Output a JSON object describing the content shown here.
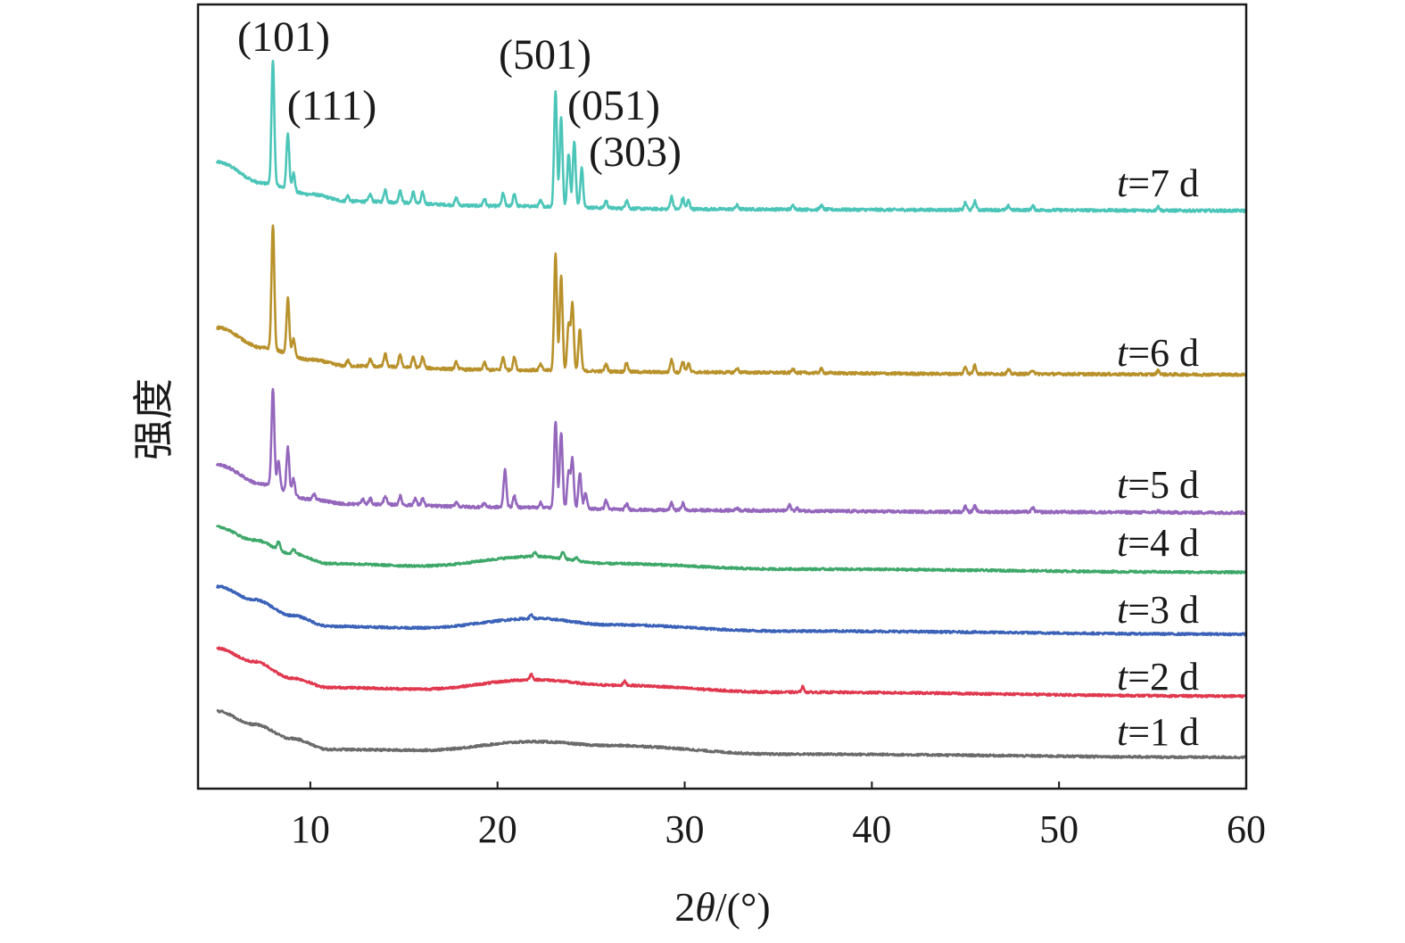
{
  "chart_data": {
    "type": "line",
    "title": "",
    "xlabel": {
      "prefix": "2",
      "var": "θ",
      "suffix": "/(°)"
    },
    "ylabel": "强度",
    "xlim": [
      4,
      60
    ],
    "ylim": [
      0,
      100
    ],
    "xticks": [
      10,
      20,
      30,
      40,
      50,
      60
    ],
    "yticks": [],
    "grid": false,
    "legend": "none (inline labels at right end of each curve)",
    "peak_annotations": [
      {
        "text": "(101)",
        "x": 8.0
      },
      {
        "text": "(111)",
        "x": 8.8
      },
      {
        "text": "(501)",
        "x": 23.1
      },
      {
        "text": "(051)",
        "x": 23.4
      },
      {
        "text": "(303)",
        "x": 24.4
      }
    ],
    "series": [
      {
        "name": "t=7 d",
        "label_var": "t",
        "label_text": "=7 d",
        "color": "#4cc5b9",
        "baseline": [
          [
            5,
            79.9
          ],
          [
            7.5,
            77.2
          ],
          [
            10,
            75.8
          ],
          [
            12,
            74.9
          ],
          [
            20,
            74.3
          ],
          [
            30,
            73.9
          ],
          [
            45,
            73.8
          ],
          [
            60,
            73.7
          ]
        ],
        "peaks": [
          [
            8.0,
            15.7
          ],
          [
            8.8,
            7.1
          ],
          [
            9.1,
            2.3
          ],
          [
            12.0,
            0.7
          ],
          [
            13.2,
            0.9
          ],
          [
            14.0,
            1.6
          ],
          [
            14.8,
            1.6
          ],
          [
            15.5,
            1.4
          ],
          [
            16.0,
            1.4
          ],
          [
            17.8,
            0.9
          ],
          [
            19.3,
            0.9
          ],
          [
            20.3,
            1.6
          ],
          [
            20.9,
            1.6
          ],
          [
            22.3,
            0.7
          ],
          [
            23.1,
            14.8
          ],
          [
            23.4,
            11.4
          ],
          [
            23.8,
            6.8
          ],
          [
            24.1,
            8.5
          ],
          [
            24.5,
            5.1
          ],
          [
            25.8,
            0.9
          ],
          [
            26.9,
            1.1
          ],
          [
            29.3,
            1.6
          ],
          [
            29.9,
            1.4
          ],
          [
            30.2,
            1.1
          ],
          [
            32.8,
            0.5
          ],
          [
            35.8,
            0.5
          ],
          [
            37.3,
            0.5
          ],
          [
            45.0,
            0.9
          ],
          [
            45.5,
            1.1
          ],
          [
            47.3,
            0.5
          ],
          [
            48.6,
            0.5
          ],
          [
            55.3,
            0.5
          ]
        ]
      },
      {
        "name": "t=6 d",
        "label_var": "t",
        "label_text": "=6 d",
        "color": "#b8912a",
        "baseline": [
          [
            5,
            58.8
          ],
          [
            7.5,
            56.2
          ],
          [
            10,
            54.7
          ],
          [
            12,
            53.9
          ],
          [
            20,
            53.4
          ],
          [
            30,
            53.1
          ],
          [
            45,
            52.9
          ],
          [
            60,
            52.8
          ]
        ],
        "peaks": [
          [
            8.0,
            15.9
          ],
          [
            8.8,
            7.1
          ],
          [
            9.1,
            2.3
          ],
          [
            12.0,
            0.7
          ],
          [
            13.2,
            0.9
          ],
          [
            14.0,
            1.6
          ],
          [
            14.8,
            1.6
          ],
          [
            15.5,
            1.4
          ],
          [
            16.0,
            1.4
          ],
          [
            17.8,
            0.9
          ],
          [
            19.3,
            0.9
          ],
          [
            20.3,
            1.6
          ],
          [
            20.9,
            1.6
          ],
          [
            22.3,
            0.7
          ],
          [
            23.1,
            14.8
          ],
          [
            23.4,
            12.2
          ],
          [
            23.8,
            6.0
          ],
          [
            24.0,
            8.5
          ],
          [
            24.4,
            5.3
          ],
          [
            25.8,
            0.9
          ],
          [
            26.9,
            1.1
          ],
          [
            29.3,
            1.6
          ],
          [
            29.9,
            1.4
          ],
          [
            30.2,
            1.1
          ],
          [
            32.8,
            0.5
          ],
          [
            35.8,
            0.5
          ],
          [
            37.3,
            0.5
          ],
          [
            45.0,
            0.9
          ],
          [
            45.5,
            1.1
          ],
          [
            47.3,
            0.5
          ],
          [
            48.6,
            0.5
          ],
          [
            55.3,
            0.5
          ]
        ]
      },
      {
        "name": "t=5 d",
        "label_var": "t",
        "label_text": "=5 d",
        "color": "#9467bd",
        "baseline": [
          [
            5,
            41.3
          ],
          [
            7.5,
            38.8
          ],
          [
            10,
            36.9
          ],
          [
            12,
            36.3
          ],
          [
            20,
            35.9
          ],
          [
            30,
            35.5
          ],
          [
            45,
            35.3
          ],
          [
            60,
            35.2
          ]
        ],
        "peaks": [
          [
            8.0,
            12.5
          ],
          [
            8.3,
            3.4
          ],
          [
            8.8,
            5.7
          ],
          [
            9.1,
            2.0
          ],
          [
            10.2,
            0.7
          ],
          [
            12.8,
            0.6
          ],
          [
            13.2,
            0.7
          ],
          [
            14.0,
            1.1
          ],
          [
            14.8,
            1.1
          ],
          [
            15.6,
            0.9
          ],
          [
            16.0,
            0.9
          ],
          [
            17.8,
            0.6
          ],
          [
            19.3,
            0.5
          ],
          [
            20.4,
            4.8
          ],
          [
            20.9,
            1.4
          ],
          [
            22.3,
            0.6
          ],
          [
            23.1,
            11.1
          ],
          [
            23.4,
            9.7
          ],
          [
            23.8,
            4.6
          ],
          [
            24.0,
            6.3
          ],
          [
            24.4,
            4.6
          ],
          [
            24.7,
            2.0
          ],
          [
            25.8,
            1.1
          ],
          [
            26.9,
            0.7
          ],
          [
            29.3,
            0.9
          ],
          [
            29.9,
            0.9
          ],
          [
            32.8,
            0.3
          ],
          [
            35.6,
            0.7
          ],
          [
            36.0,
            0.3
          ],
          [
            45.0,
            0.7
          ],
          [
            45.5,
            0.7
          ],
          [
            48.6,
            0.5
          ],
          [
            55.3,
            0.2
          ]
        ]
      },
      {
        "name": "t=4 d",
        "label_var": "t",
        "label_text": "=4 d",
        "color": "#3ea86a",
        "baseline": [
          [
            5,
            33.4
          ],
          [
            7,
            31.7
          ],
          [
            9,
            30.0
          ],
          [
            11,
            28.7
          ],
          [
            16,
            28.4
          ],
          [
            22,
            29.6
          ],
          [
            26,
            28.7
          ],
          [
            35,
            28.0
          ],
          [
            60,
            27.6
          ]
        ],
        "peaks": [
          [
            8.3,
            1.1
          ],
          [
            9.1,
            0.6
          ],
          [
            22.0,
            0.6
          ],
          [
            23.5,
            0.9
          ],
          [
            24.2,
            0.4
          ]
        ]
      },
      {
        "name": "t=3 d",
        "label_var": "t",
        "label_text": "=3 d",
        "color": "#3b62b8",
        "baseline": [
          [
            5,
            25.8
          ],
          [
            7,
            24.1
          ],
          [
            9,
            22.1
          ],
          [
            11,
            20.7
          ],
          [
            16,
            20.5
          ],
          [
            22,
            21.7
          ],
          [
            26,
            20.9
          ],
          [
            35,
            20.1
          ],
          [
            60,
            19.7
          ]
        ],
        "peaks": [
          [
            21.8,
            0.5
          ]
        ]
      },
      {
        "name": "t=2 d",
        "label_var": "t",
        "label_text": "=2 d",
        "color": "#e0384e",
        "baseline": [
          [
            5,
            17.9
          ],
          [
            7,
            16.2
          ],
          [
            9,
            14.1
          ],
          [
            11,
            12.9
          ],
          [
            16,
            12.7
          ],
          [
            22,
            13.9
          ],
          [
            26,
            13.2
          ],
          [
            35,
            12.3
          ],
          [
            60,
            11.8
          ]
        ],
        "peaks": [
          [
            21.8,
            0.7
          ],
          [
            26.8,
            0.5
          ],
          [
            36.3,
            0.7
          ]
        ]
      },
      {
        "name": "t=1 d",
        "label_var": "t",
        "label_text": "=1 d",
        "color": "#6b6b6b",
        "baseline": [
          [
            5,
            9.9
          ],
          [
            7,
            8.2
          ],
          [
            9,
            6.4
          ],
          [
            11,
            5.0
          ],
          [
            16,
            4.9
          ],
          [
            22,
            6.0
          ],
          [
            26,
            5.5
          ],
          [
            35,
            4.4
          ],
          [
            60,
            4.0
          ]
        ],
        "peaks": []
      }
    ]
  }
}
